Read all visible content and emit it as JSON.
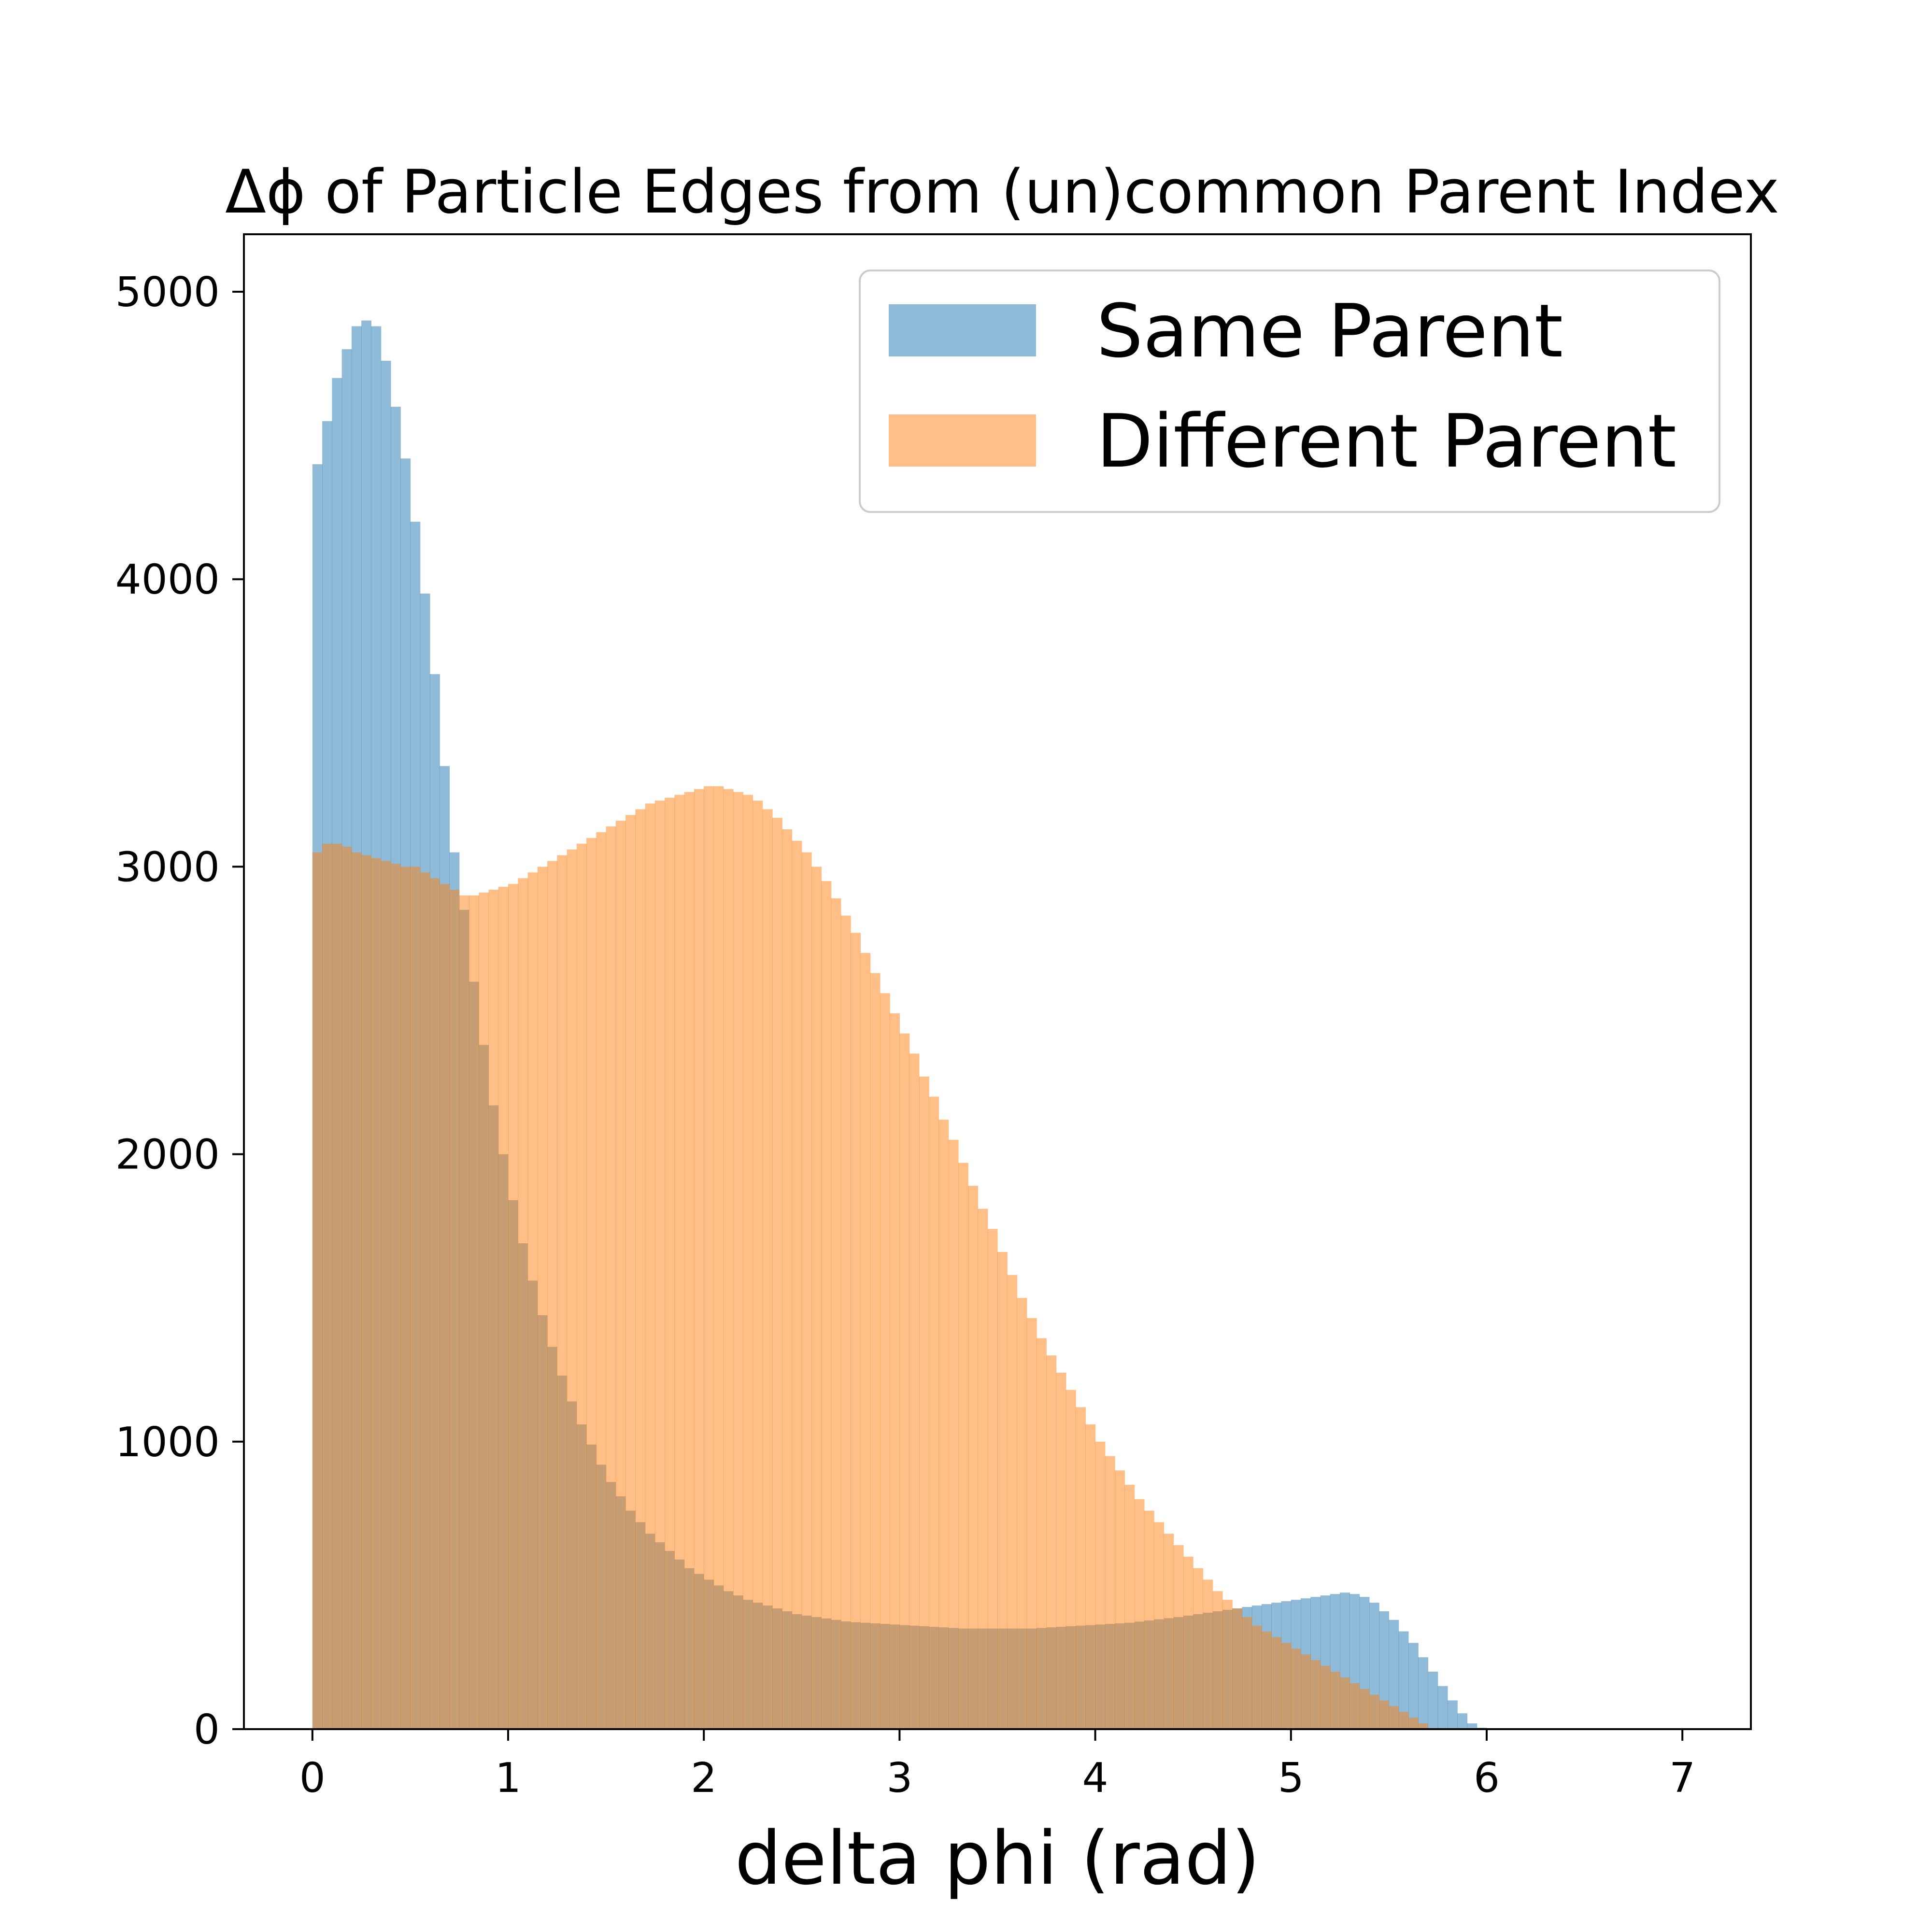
{
  "chart_data": {
    "type": "bar",
    "title": "Δϕ of Particle Edges from (un)common Parent Index",
    "xlabel": "delta phi (rad)",
    "ylabel": "",
    "xlim": [
      -0.35,
      7.35
    ],
    "ylim": [
      0,
      5200
    ],
    "xticks": [
      "0",
      "1",
      "2",
      "3",
      "4",
      "5",
      "6",
      "7"
    ],
    "yticks": [
      "0",
      "1000",
      "2000",
      "3000",
      "4000",
      "5000"
    ],
    "grid": false,
    "legend_position": "top-right",
    "bin_width": 0.05,
    "series": [
      {
        "name": "Same Parent",
        "color": "#1f77b4",
        "opacity": 0.5,
        "x_start": 0.0,
        "values": [
          4400,
          4550,
          4700,
          4800,
          4880,
          4900,
          4880,
          4760,
          4600,
          4420,
          4200,
          3950,
          3670,
          3350,
          3050,
          2850,
          2600,
          2380,
          2170,
          2000,
          1840,
          1690,
          1560,
          1440,
          1330,
          1230,
          1140,
          1060,
          990,
          920,
          860,
          810,
          760,
          720,
          680,
          650,
          620,
          590,
          560,
          540,
          520,
          500,
          480,
          465,
          450,
          440,
          430,
          420,
          410,
          400,
          395,
          390,
          385,
          380,
          375,
          372,
          370,
          368,
          366,
          364,
          362,
          360,
          358,
          356,
          354,
          352,
          350,
          350,
          350,
          350,
          350,
          350,
          350,
          350,
          352,
          354,
          356,
          358,
          360,
          362,
          364,
          366,
          368,
          370,
          374,
          378,
          382,
          386,
          390,
          395,
          400,
          405,
          410,
          415,
          420,
          425,
          430,
          435,
          440,
          445,
          450,
          455,
          460,
          465,
          470,
          475,
          470,
          460,
          440,
          410,
          380,
          340,
          300,
          250,
          200,
          150,
          100,
          55,
          20,
          5,
          0,
          0,
          0,
          0,
          0,
          0,
          0,
          0,
          0,
          0,
          0,
          0,
          0,
          0,
          0,
          0,
          0,
          0,
          0,
          0,
          0,
          0,
          0,
          0
        ]
      },
      {
        "name": "Different Parent",
        "color": "#ff7f0e",
        "opacity": 0.5,
        "x_start": 0.0,
        "values": [
          3050,
          3080,
          3080,
          3070,
          3050,
          3040,
          3030,
          3020,
          3010,
          3000,
          3000,
          2980,
          2960,
          2940,
          2920,
          2900,
          2900,
          2910,
          2920,
          2930,
          2940,
          2960,
          2980,
          3000,
          3020,
          3040,
          3060,
          3080,
          3100,
          3120,
          3140,
          3160,
          3180,
          3200,
          3220,
          3230,
          3240,
          3250,
          3260,
          3270,
          3280,
          3280,
          3270,
          3260,
          3250,
          3230,
          3200,
          3170,
          3130,
          3090,
          3050,
          3000,
          2950,
          2890,
          2830,
          2770,
          2700,
          2630,
          2560,
          2490,
          2420,
          2350,
          2270,
          2200,
          2120,
          2050,
          1970,
          1890,
          1810,
          1740,
          1660,
          1580,
          1500,
          1430,
          1360,
          1300,
          1240,
          1180,
          1120,
          1060,
          1000,
          950,
          900,
          850,
          800,
          760,
          720,
          680,
          640,
          600,
          560,
          520,
          480,
          450,
          420,
          390,
          360,
          340,
          320,
          300,
          280,
          260,
          240,
          220,
          200,
          180,
          160,
          140,
          120,
          100,
          80,
          60,
          40,
          20,
          0,
          0,
          0,
          0,
          0,
          0,
          0,
          0,
          0,
          0,
          0,
          0,
          0,
          0,
          0,
          0,
          0,
          0,
          0,
          0,
          0,
          0,
          0,
          0,
          0,
          0,
          0,
          0,
          0
        ]
      }
    ]
  }
}
